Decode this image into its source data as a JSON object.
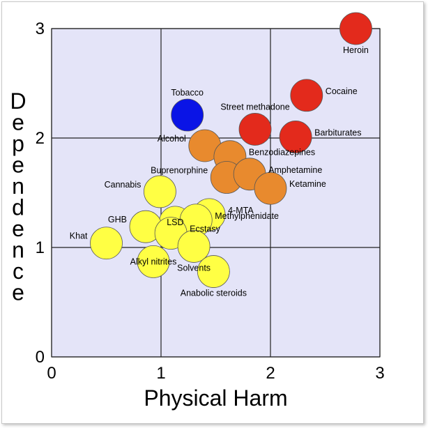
{
  "chart_data": {
    "type": "scatter",
    "xlabel": "Physical Harm",
    "ylabel": "Dependence",
    "xlim": [
      0,
      3
    ],
    "ylim": [
      0,
      3
    ],
    "xticks": [
      "0",
      "1",
      "2",
      "3"
    ],
    "yticks": [
      "0",
      "1",
      "2",
      "3"
    ],
    "grid": true,
    "colors": {
      "plot_background": "#e4e4f8",
      "illicit_low": "#ffff44",
      "illicit_mid": "#e88a2e",
      "illicit_high": "#e32a1c",
      "legal_tobacco": "#0a14e6"
    },
    "points": [
      {
        "label": "Heroin",
        "x": 2.78,
        "y": 3.0,
        "color": "#e32a1c",
        "label_pos": "below"
      },
      {
        "label": "Cocaine",
        "x": 2.33,
        "y": 2.39,
        "color": "#e32a1c",
        "label_pos": "right"
      },
      {
        "label": "Barbiturates",
        "x": 2.23,
        "y": 2.01,
        "color": "#e32a1c",
        "label_pos": "right"
      },
      {
        "label": "Street methadone",
        "x": 1.86,
        "y": 2.08,
        "color": "#e32a1c",
        "label_pos": "above"
      },
      {
        "label": "Tobacco",
        "x": 1.24,
        "y": 2.21,
        "color": "#0a14e6",
        "label_pos": "above"
      },
      {
        "label": "Alcohol",
        "x": 1.4,
        "y": 1.93,
        "color": "#e88a2e",
        "label_pos": "left"
      },
      {
        "label": "Benzodiazepines",
        "x": 1.63,
        "y": 1.83,
        "color": "#e88a2e",
        "label_pos": "right"
      },
      {
        "label": "Buprenorphine",
        "x": 1.6,
        "y": 1.64,
        "color": "#e88a2e",
        "label_pos": "left"
      },
      {
        "label": "Amphetamine",
        "x": 1.81,
        "y": 1.67,
        "color": "#e88a2e",
        "label_pos": "right"
      },
      {
        "label": "Ketamine",
        "x": 2.0,
        "y": 1.54,
        "color": "#e88a2e",
        "label_pos": "right"
      },
      {
        "label": "Cannabis",
        "x": 0.99,
        "y": 1.51,
        "color": "#ffff44",
        "label_pos": "left"
      },
      {
        "label": "4-MTA",
        "x": 1.44,
        "y": 1.3,
        "color": "#ffff44",
        "label_pos": "right"
      },
      {
        "label": "LSD",
        "x": 1.13,
        "y": 1.23,
        "color": "#ffff44",
        "label_pos": "center"
      },
      {
        "label": "Methylphenidate",
        "x": 1.32,
        "y": 1.25,
        "color": "#ffff44",
        "label_pos": "right"
      },
      {
        "label": "GHB",
        "x": 0.86,
        "y": 1.19,
        "color": "#ffff44",
        "label_pos": "left"
      },
      {
        "label": "Ecstasy",
        "x": 1.09,
        "y": 1.13,
        "color": "#ffff44",
        "label_pos": "right"
      },
      {
        "label": "Khat",
        "x": 0.5,
        "y": 1.04,
        "color": "#ffff44",
        "label_pos": "left"
      },
      {
        "label": "Solvents",
        "x": 1.3,
        "y": 1.01,
        "color": "#ffff44",
        "label_pos": "below"
      },
      {
        "label": "Alkyl nitrites",
        "x": 0.93,
        "y": 0.87,
        "color": "#ffff44",
        "label_pos": "center"
      },
      {
        "label": "Anabolic steroids",
        "x": 1.48,
        "y": 0.78,
        "color": "#ffff44",
        "label_pos": "below"
      }
    ]
  }
}
